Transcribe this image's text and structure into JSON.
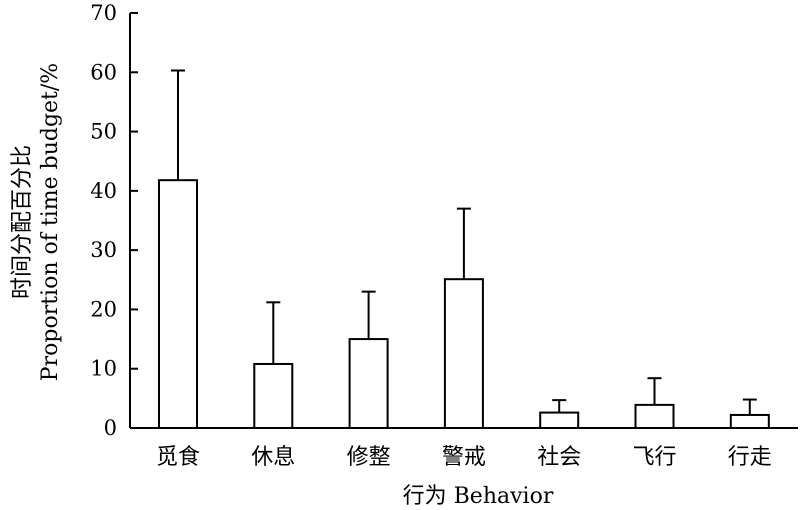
{
  "chart_data": {
    "type": "bar",
    "categories": [
      "觅食",
      "休息",
      "修整",
      "警戒",
      "社会",
      "飞行",
      "行走"
    ],
    "values": [
      41.8,
      10.8,
      15.0,
      25.1,
      2.6,
      3.9,
      2.2
    ],
    "error_plus": [
      18.5,
      10.4,
      8.0,
      11.9,
      2.1,
      4.5,
      2.6
    ],
    "xlabel": "行为 Behavior",
    "ylabel_line1": "时间分配百分比",
    "ylabel_line2": "Proportion of time budget/%",
    "ylim": [
      0,
      70
    ],
    "yticks": [
      0,
      10,
      20,
      30,
      40,
      50,
      60,
      70
    ],
    "grid": false,
    "legend": "none",
    "bar_fill": "#ffffff",
    "stroke_color": "#000000"
  }
}
